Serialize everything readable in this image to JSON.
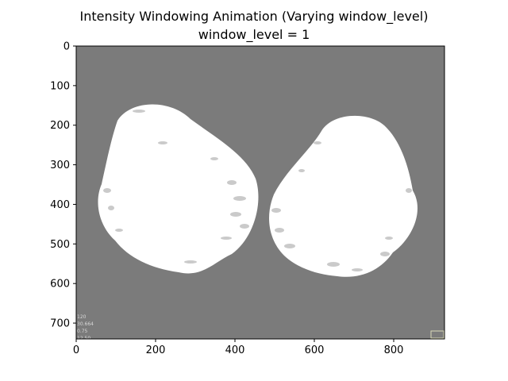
{
  "figure": {
    "title": "Intensity Windowing Animation (Varying window_level)",
    "subtitle": "window_level = 1",
    "x_ticks": [
      "0",
      "200",
      "400",
      "600",
      "800"
    ],
    "y_ticks": [
      "0",
      "100",
      "200",
      "300",
      "400",
      "500",
      "600",
      "700"
    ],
    "x_range": [
      0,
      928
    ],
    "y_range": [
      0,
      740
    ],
    "background_color": "#7b7b7b",
    "tissue_color": "#ffffff",
    "image_annotation": [
      "120",
      "30.664",
      "0.75",
      "12.50"
    ]
  }
}
